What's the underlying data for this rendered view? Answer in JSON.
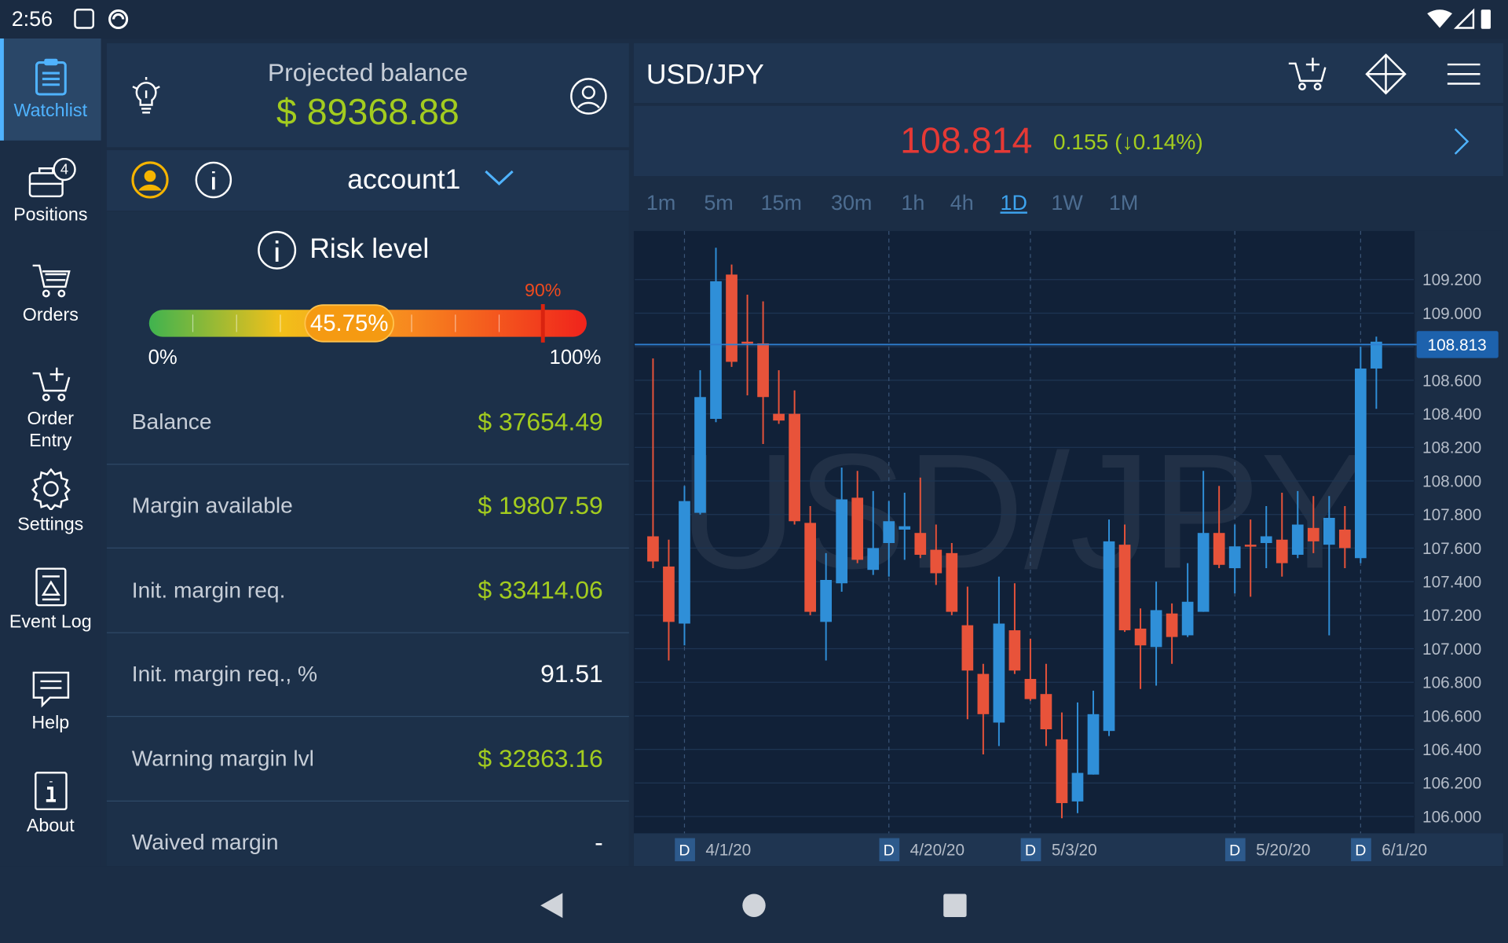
{
  "status_bar": {
    "time": "2:56"
  },
  "nav": [
    {
      "label": "Watchlist",
      "active": true
    },
    {
      "label": "Positions",
      "badge": 4
    },
    {
      "label": "Orders"
    },
    {
      "label": "Order Entry"
    },
    {
      "label": "Settings"
    },
    {
      "label": "Event Log"
    },
    {
      "label": "Help"
    },
    {
      "label": "About"
    }
  ],
  "account": {
    "projected_label": "Projected balance",
    "projected_value": "$ 89368.88",
    "name": "account1"
  },
  "risk": {
    "title": "Risk level",
    "value": 45.75,
    "label": "45.75%",
    "warning": 90,
    "warning_label": "90%",
    "min": 0,
    "min_label": "0%",
    "max": 100,
    "max_label": "100%"
  },
  "metrics": [
    {
      "label": "Balance",
      "value": "$ 37654.49",
      "color": "#a3cc1f"
    },
    {
      "label": "Margin available",
      "value": "$ 19807.59",
      "color": "#a3cc1f"
    },
    {
      "label": "Init. margin req.",
      "value": "$ 33414.06",
      "color": "#a3cc1f"
    },
    {
      "label": "Init. margin req., %",
      "value": "91.51",
      "color": "#ffffff"
    },
    {
      "label": "Warning margin lvl",
      "value": "$ 32863.16",
      "color": "#a3cc1f"
    },
    {
      "label": "Waived margin",
      "value": "-",
      "color": "#ffffff"
    }
  ],
  "quote": {
    "symbol": "USD/JPY",
    "price": "108.814",
    "change": "0.155 (↓0.14%)"
  },
  "timeframes": {
    "items": [
      "1m",
      "5m",
      "15m",
      "30m",
      "1h",
      "4h",
      "1D",
      "1W",
      "1M"
    ],
    "active": 6
  },
  "chart_data": {
    "type": "candlestick",
    "up_color": "#2f8fd8",
    "down_color": "#e8533a",
    "date_marker": "D",
    "categories": [
      null,
      null,
      "4/1/20",
      null,
      null,
      null,
      null,
      null,
      null,
      null,
      null,
      null,
      null,
      null,
      null,
      "4/20/20",
      null,
      null,
      null,
      null,
      null,
      null,
      null,
      null,
      "5/3/20",
      null,
      null,
      null,
      null,
      null,
      null,
      null,
      null,
      null,
      null,
      null,
      null,
      "5/20/20",
      null,
      null,
      null,
      null,
      null,
      null,
      null,
      "6/1/20",
      null
    ],
    "open": [
      107.67,
      107.49,
      107.15,
      107.81,
      108.37,
      109.23,
      108.83,
      108.82,
      108.4,
      108.4,
      107.75,
      107.16,
      107.39,
      107.9,
      107.47,
      107.63,
      107.71,
      107.69,
      107.59,
      107.57,
      107.14,
      106.85,
      106.56,
      107.11,
      106.82,
      106.73,
      106.46,
      106.09,
      106.25,
      106.51,
      107.62,
      107.12,
      107.01,
      107.21,
      107.08,
      107.22,
      107.69,
      107.48,
      107.62,
      107.63,
      107.65,
      107.56,
      107.72,
      107.62,
      107.71,
      107.54,
      108.67
    ],
    "high": [
      108.73,
      107.65,
      107.97,
      108.66,
      109.39,
      109.29,
      109.11,
      109.07,
      108.66,
      108.54,
      107.85,
      107.57,
      108.08,
      108.06,
      107.94,
      107.88,
      107.93,
      108.02,
      107.74,
      107.63,
      107.37,
      106.91,
      107.43,
      107.39,
      107.06,
      106.91,
      106.62,
      106.68,
      106.75,
      107.77,
      107.74,
      107.24,
      107.4,
      107.27,
      107.51,
      108.06,
      107.97,
      107.74,
      107.77,
      107.85,
      107.93,
      107.94,
      107.91,
      107.91,
      107.85,
      108.8,
      108.86
    ],
    "low": [
      107.48,
      106.93,
      107.02,
      107.8,
      108.35,
      108.68,
      108.51,
      108.22,
      108.34,
      107.74,
      107.2,
      106.93,
      107.34,
      107.51,
      107.44,
      107.43,
      107.53,
      107.54,
      107.38,
      107.2,
      106.58,
      106.37,
      106.42,
      106.85,
      106.69,
      106.42,
      105.99,
      106.02,
      106.25,
      106.48,
      107.1,
      106.76,
      106.78,
      106.91,
      107.07,
      107.22,
      107.48,
      107.33,
      107.31,
      107.48,
      107.43,
      107.54,
      107.57,
      107.08,
      107.48,
      107.51,
      108.43
    ],
    "close": [
      107.52,
      107.16,
      107.88,
      108.5,
      109.19,
      108.71,
      108.82,
      108.5,
      108.36,
      107.76,
      107.22,
      107.41,
      107.89,
      107.53,
      107.6,
      107.76,
      107.73,
      107.56,
      107.45,
      107.22,
      106.87,
      106.61,
      107.15,
      106.87,
      106.7,
      106.52,
      106.08,
      106.26,
      106.61,
      107.64,
      107.11,
      107.02,
      107.23,
      107.07,
      107.28,
      107.69,
      107.5,
      107.61,
      107.61,
      107.67,
      107.51,
      107.74,
      107.64,
      107.78,
      107.6,
      108.67,
      108.83
    ],
    "ylim": [
      105.9,
      109.49
    ],
    "yticks": [
      {
        "value": 109.2,
        "label": "109.200"
      },
      {
        "value": 109.0,
        "label": "109.000"
      },
      {
        "value": 108.8,
        "label": "108.800"
      },
      {
        "value": 108.6,
        "label": "108.600"
      },
      {
        "value": 108.4,
        "label": "108.400"
      },
      {
        "value": 108.2,
        "label": "108.200"
      },
      {
        "value": 108.0,
        "label": "108.000"
      },
      {
        "value": 107.8,
        "label": "107.800"
      },
      {
        "value": 107.6,
        "label": "107.600"
      },
      {
        "value": 107.4,
        "label": "107.400"
      },
      {
        "value": 107.2,
        "label": "107.200"
      },
      {
        "value": 107.0,
        "label": "107.000"
      },
      {
        "value": 106.8,
        "label": "106.800"
      },
      {
        "value": 106.6,
        "label": "106.600"
      },
      {
        "value": 106.4,
        "label": "106.400"
      },
      {
        "value": 106.2,
        "label": "106.200"
      },
      {
        "value": 106.0,
        "label": "106.000"
      }
    ],
    "hidden_ticks": [
      2
    ],
    "current_price": {
      "value": 108.813,
      "label": "108.813"
    },
    "line_color": "#2f7fd0"
  }
}
